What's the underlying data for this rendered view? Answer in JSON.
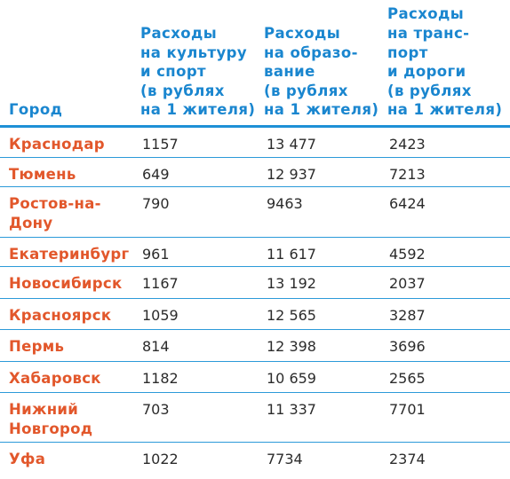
{
  "colors": {
    "header_text": "#1a86cf",
    "city_text": "#e2572b",
    "rule": "#1e90d6",
    "value_text": "#2b2b2b"
  },
  "headers": [
    "Город",
    "Расходы\nна культуру\nи спорт\n(в рублях\nна 1 жителя)",
    "Расходы\nна образо-\nвание\n(в рублях\nна 1 жителя)",
    "Расходы\nна транс-\nпорт\nи дороги\n(в рублях\nна 1 жителя)"
  ],
  "rows": [
    {
      "city": "Краснодар",
      "culture": "1157",
      "education": "13 477",
      "transport": "2423"
    },
    {
      "city": "Тюмень",
      "culture": "649",
      "education": "12 937",
      "transport": "7213"
    },
    {
      "city": "Ростов-на-\nДону",
      "culture": "790",
      "education": "9463",
      "transport": "6424"
    },
    {
      "city": "Екатеринбург",
      "culture": "961",
      "education": "11 617",
      "transport": "4592"
    },
    {
      "city": "Новосибирск",
      "culture": "1167",
      "education": "13 192",
      "transport": "2037"
    },
    {
      "city": "Красноярск",
      "culture": "1059",
      "education": "12 565",
      "transport": "3287"
    },
    {
      "city": "Пермь",
      "culture": "814",
      "education": "12 398",
      "transport": "3696"
    },
    {
      "city": "Хабаровск",
      "culture": "1182",
      "education": "10 659",
      "transport": "2565"
    },
    {
      "city": "Нижний\nНовгород",
      "culture": "703",
      "education": "11 337",
      "transport": "7701"
    },
    {
      "city": "Уфа",
      "culture": "1022",
      "education": "7734",
      "transport": "2374"
    }
  ]
}
